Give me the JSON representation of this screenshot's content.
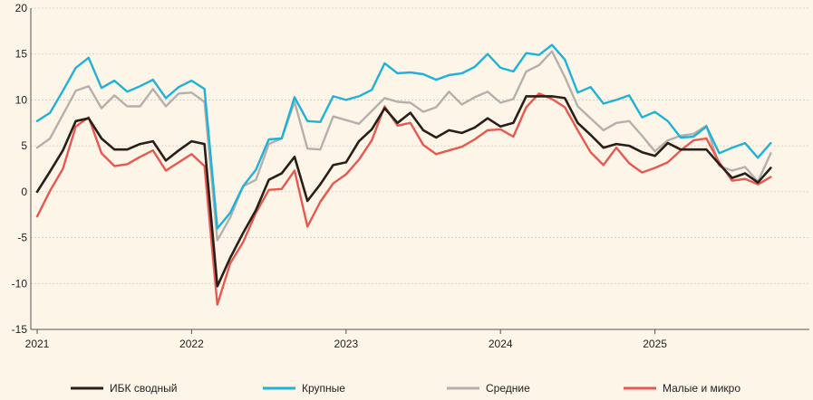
{
  "chart_data": {
    "type": "line",
    "title": "",
    "xlabel": "",
    "ylabel": "",
    "ylim": [
      -15,
      20
    ],
    "yticks": [
      20,
      15,
      10,
      5,
      0,
      -5,
      -10,
      -15
    ],
    "xticks": [
      {
        "label": "2021",
        "x": 0
      },
      {
        "label": "2022",
        "x": 12
      },
      {
        "label": "2023",
        "x": 24
      },
      {
        "label": "2024",
        "x": 36
      },
      {
        "label": "2025",
        "x": 48
      }
    ],
    "x_range": [
      0,
      60
    ],
    "series": [
      {
        "name": "ИБК сводный",
        "color": "#2a1e18",
        "values": [
          0.0,
          2.2,
          4.5,
          7.7,
          8.0,
          5.8,
          4.6,
          4.6,
          5.2,
          5.5,
          3.4,
          4.5,
          5.5,
          5.2,
          -10.3,
          -7.2,
          -4.5,
          -2.0,
          1.3,
          2.0,
          3.8,
          -1.0,
          0.8,
          2.9,
          3.2,
          5.5,
          6.8,
          9.1,
          7.5,
          8.6,
          6.7,
          5.9,
          6.7,
          6.4,
          7.0,
          8.0,
          7.1,
          7.5,
          10.4,
          10.4,
          10.4,
          10.2,
          7.5,
          6.2,
          4.8,
          5.2,
          5.0,
          4.3,
          3.9,
          5.3,
          4.6,
          4.6,
          4.6,
          3.0,
          1.5,
          2.0,
          1.0,
          2.6
        ]
      },
      {
        "name": "Крупные",
        "color": "#1fb2d8",
        "values": [
          7.7,
          8.6,
          11.0,
          13.5,
          14.6,
          11.3,
          12.1,
          10.9,
          11.5,
          12.2,
          10.2,
          11.4,
          12.1,
          11.2,
          -4.0,
          -2.3,
          0.6,
          2.4,
          5.7,
          5.8,
          10.3,
          7.7,
          7.6,
          10.4,
          10.0,
          10.4,
          11.1,
          14.0,
          12.9,
          13.0,
          12.8,
          12.2,
          12.7,
          12.9,
          13.6,
          15.0,
          13.5,
          13.1,
          15.1,
          14.9,
          16.0,
          14.4,
          10.8,
          11.4,
          9.6,
          10.0,
          10.5,
          8.1,
          8.7,
          7.7,
          5.9,
          6.0,
          7.1,
          4.2,
          4.8,
          5.3,
          3.7,
          5.3
        ]
      },
      {
        "name": "Средние",
        "color": "#b5b0ac",
        "values": [
          4.8,
          5.8,
          8.4,
          11.0,
          11.5,
          9.1,
          10.5,
          9.3,
          9.3,
          11.2,
          9.3,
          10.7,
          10.8,
          9.8,
          -5.3,
          -2.8,
          0.6,
          1.3,
          5.2,
          5.8,
          9.8,
          4.7,
          4.6,
          8.2,
          7.8,
          7.4,
          8.8,
          10.2,
          9.8,
          9.7,
          8.7,
          9.2,
          10.9,
          9.5,
          10.3,
          10.9,
          9.7,
          10.1,
          13.1,
          13.8,
          15.3,
          12.5,
          9.3,
          8.0,
          6.7,
          7.5,
          7.7,
          6.1,
          4.4,
          5.6,
          6.1,
          6.3,
          7.2,
          2.8,
          2.3,
          2.7,
          1.1,
          4.2
        ]
      },
      {
        "name": "Малые и микро",
        "color": "#e85850",
        "values": [
          -2.7,
          0.1,
          2.5,
          7.1,
          8.1,
          4.2,
          2.8,
          3.0,
          3.8,
          4.5,
          2.3,
          3.2,
          4.1,
          2.8,
          -12.3,
          -7.8,
          -5.5,
          -2.3,
          0.2,
          0.3,
          2.3,
          -3.8,
          -1.1,
          0.9,
          1.9,
          3.5,
          5.6,
          9.3,
          7.2,
          7.5,
          5.1,
          4.1,
          4.5,
          4.9,
          5.7,
          6.7,
          6.8,
          6.0,
          9.2,
          10.7,
          10.1,
          9.2,
          6.7,
          4.3,
          2.9,
          4.8,
          3.1,
          2.1,
          2.6,
          3.2,
          4.5,
          5.6,
          5.8,
          3.2,
          1.2,
          1.4,
          0.8,
          1.6
        ]
      }
    ]
  }
}
